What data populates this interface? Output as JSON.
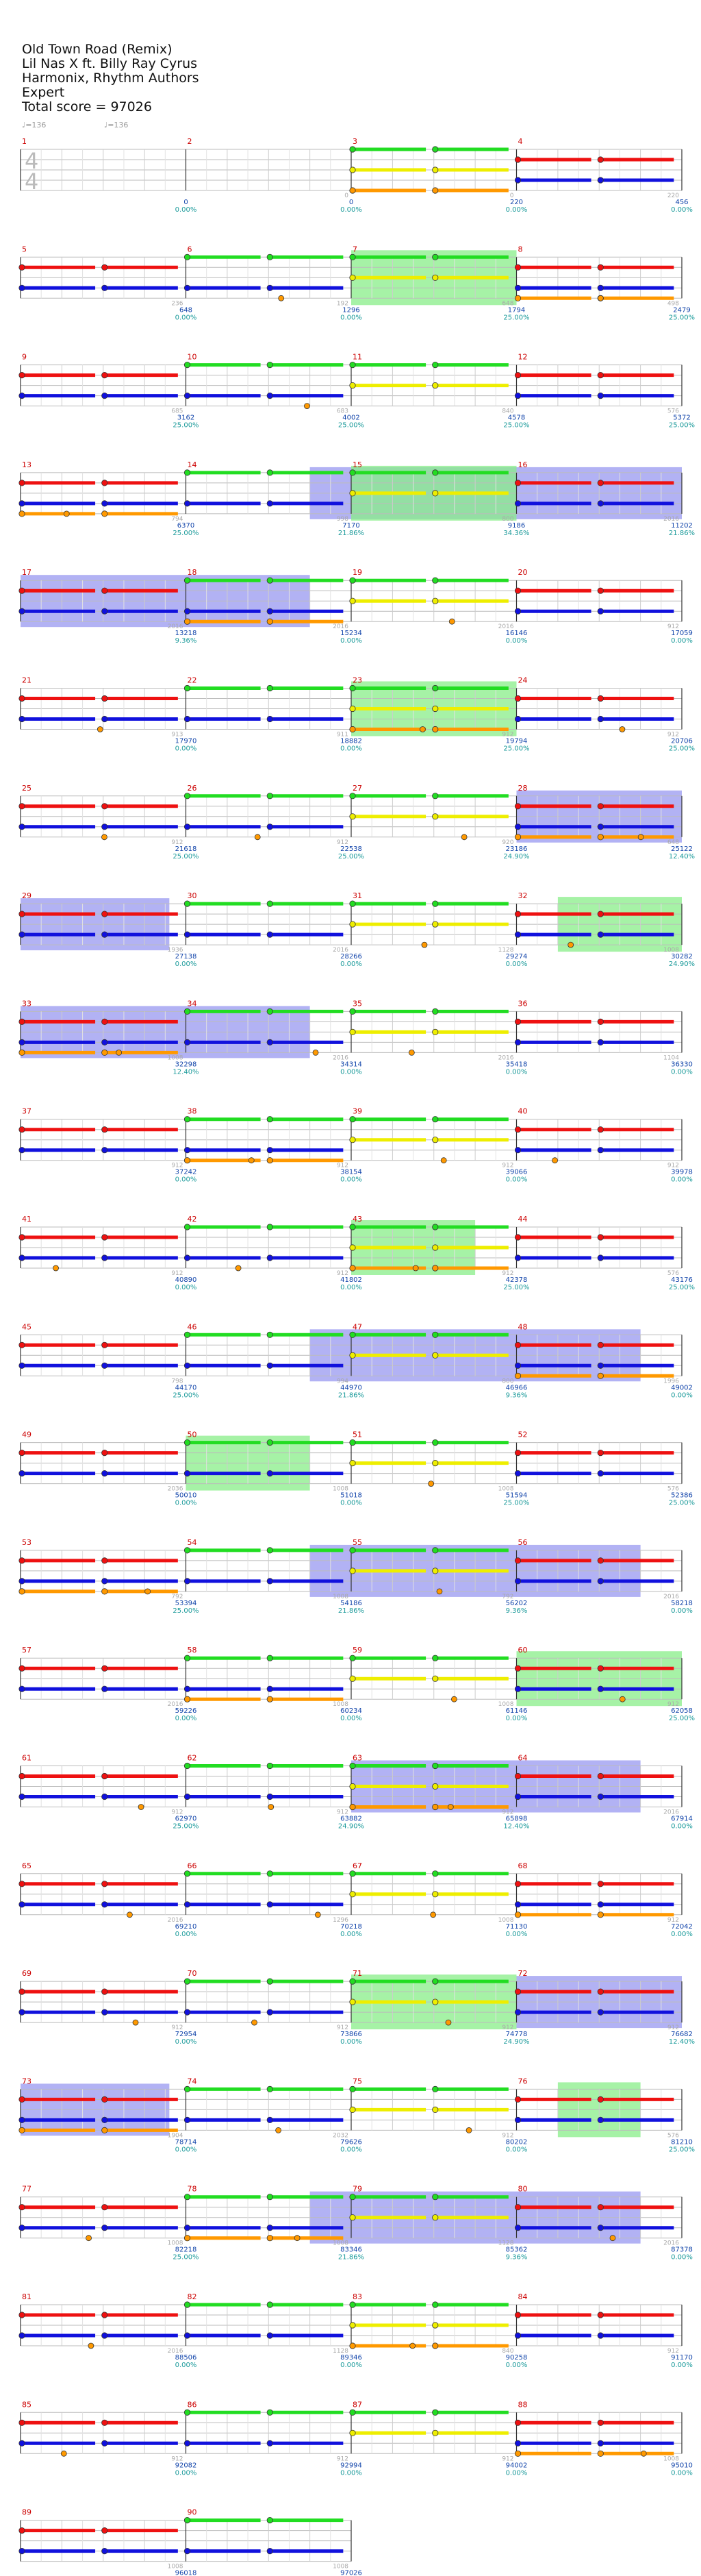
{
  "header": {
    "song": "Old Town Road (Remix)",
    "artist": "Lil Nas X ft. Billy Ray Cyrus",
    "charter": "Harmonix, Rhythm Authors",
    "difficulty": "Expert",
    "total_score": "Total score = 97026"
  },
  "tempo_markers": [
    "♩=136",
    "♩=136"
  ],
  "time_signature": [
    "4",
    "4"
  ],
  "colors": {
    "green": "#22dd22",
    "red": "#ee1111",
    "yellow": "#eeee00",
    "blue": "#1111dd",
    "orange": "#ff9900",
    "star_power": "#88ee88",
    "overdrive": "#8888ee",
    "measure_number": "#cc0000",
    "score": "#1144aa",
    "percent": "#1a9a9a",
    "measure_value": "#aaaaaa"
  },
  "measures": [
    {
      "n": "1",
      "v": "",
      "s": "",
      "p": ""
    },
    {
      "n": "2",
      "v": "0",
      "s": "0",
      "p": "0.00%"
    },
    {
      "n": "3",
      "v": "0",
      "s": "0",
      "p": "0.00%"
    },
    {
      "n": "4",
      "v": "220",
      "s": "220",
      "p": "0.00%"
    },
    {
      "n": "5",
      "v": "236",
      "s": "456",
      "p": "0.00%"
    },
    {
      "n": "6",
      "v": "192",
      "s": "648",
      "p": "0.00%"
    },
    {
      "n": "7",
      "v": "648",
      "s": "1296",
      "p": "0.00%"
    },
    {
      "n": "8",
      "v": "498",
      "s": "1794",
      "p": "25.00%"
    },
    {
      "n": "9",
      "v": "685",
      "s": "2479",
      "p": "25.00%"
    },
    {
      "n": "10",
      "v": "683",
      "s": "3162",
      "p": "25.00%"
    },
    {
      "n": "11",
      "v": "840",
      "s": "4002",
      "p": "25.00%"
    },
    {
      "n": "12",
      "v": "576",
      "s": "4578",
      "p": "25.00%"
    },
    {
      "n": "13",
      "v": "794",
      "s": "5372",
      "p": "25.00%"
    },
    {
      "n": "14",
      "v": "998",
      "s": "6370",
      "p": "25.00%"
    },
    {
      "n": "15",
      "v": "800",
      "s": "7170",
      "p": "21.86%"
    },
    {
      "n": "16",
      "v": "2016",
      "s": "9186",
      "p": "34.36%"
    },
    {
      "n": "17",
      "v": "2016",
      "s": "11202",
      "p": "21.86%"
    },
    {
      "n": "18",
      "v": "2016",
      "s": "13218",
      "p": "9.36%"
    },
    {
      "n": "19",
      "v": "2016",
      "s": "15234",
      "p": "0.00%"
    },
    {
      "n": "20",
      "v": "912",
      "s": "16146",
      "p": "0.00%"
    },
    {
      "n": "21",
      "v": "913",
      "s": "17059",
      "p": "0.00%"
    },
    {
      "n": "22",
      "v": "911",
      "s": "17970",
      "p": "0.00%"
    },
    {
      "n": "23",
      "v": "912",
      "s": "18882",
      "p": "0.00%"
    },
    {
      "n": "24",
      "v": "912",
      "s": "19794",
      "p": "25.00%"
    },
    {
      "n": "25",
      "v": "912",
      "s": "20706",
      "p": "25.00%"
    },
    {
      "n": "26",
      "v": "912",
      "s": "21618",
      "p": "25.00%"
    },
    {
      "n": "27",
      "v": "920",
      "s": "22538",
      "p": "25.00%"
    },
    {
      "n": "28",
      "v": "648",
      "s": "23186",
      "p": "24.90%"
    },
    {
      "n": "29",
      "v": "1936",
      "s": "25122",
      "p": "12.40%"
    },
    {
      "n": "30",
      "v": "2016",
      "s": "27138",
      "p": "0.00%"
    },
    {
      "n": "31",
      "v": "1128",
      "s": "28266",
      "p": "0.00%"
    },
    {
      "n": "32",
      "v": "1008",
      "s": "29274",
      "p": "0.00%"
    },
    {
      "n": "33",
      "v": "1008",
      "s": "30282",
      "p": "24.90%"
    },
    {
      "n": "34",
      "v": "2016",
      "s": "32298",
      "p": "12.40%"
    },
    {
      "n": "35",
      "v": "2016",
      "s": "34314",
      "p": "0.00%"
    },
    {
      "n": "36",
      "v": "1104",
      "s": "35418",
      "p": "0.00%"
    },
    {
      "n": "37",
      "v": "912",
      "s": "36330",
      "p": "0.00%"
    },
    {
      "n": "38",
      "v": "912",
      "s": "37242",
      "p": "0.00%"
    },
    {
      "n": "39",
      "v": "912",
      "s": "38154",
      "p": "0.00%"
    },
    {
      "n": "40",
      "v": "912",
      "s": "39066",
      "p": "0.00%"
    },
    {
      "n": "41",
      "v": "912",
      "s": "39978",
      "p": "0.00%"
    },
    {
      "n": "42",
      "v": "912",
      "s": "40890",
      "p": "0.00%"
    },
    {
      "n": "43",
      "v": "912",
      "s": "41802",
      "p": "0.00%"
    },
    {
      "n": "44",
      "v": "576",
      "s": "42378",
      "p": "25.00%"
    },
    {
      "n": "45",
      "v": "798",
      "s": "43176",
      "p": "25.00%"
    },
    {
      "n": "46",
      "v": "994",
      "s": "44170",
      "p": "25.00%"
    },
    {
      "n": "47",
      "v": "800",
      "s": "44970",
      "p": "21.86%"
    },
    {
      "n": "48",
      "v": "1996",
      "s": "46966",
      "p": "9.36%"
    },
    {
      "n": "49",
      "v": "2036",
      "s": "49002",
      "p": "0.00%"
    },
    {
      "n": "50",
      "v": "1008",
      "s": "50010",
      "p": "0.00%"
    },
    {
      "n": "51",
      "v": "1008",
      "s": "51018",
      "p": "0.00%"
    },
    {
      "n": "52",
      "v": "576",
      "s": "51594",
      "p": "25.00%"
    },
    {
      "n": "53",
      "v": "792",
      "s": "52386",
      "p": "25.00%"
    },
    {
      "n": "54",
      "v": "1008",
      "s": "53394",
      "p": "25.00%"
    },
    {
      "n": "55",
      "v": "792",
      "s": "54186",
      "p": "21.86%"
    },
    {
      "n": "56",
      "v": "2016",
      "s": "56202",
      "p": "9.36%"
    },
    {
      "n": "57",
      "v": "2016",
      "s": "58218",
      "p": "0.00%"
    },
    {
      "n": "58",
      "v": "1008",
      "s": "59226",
      "p": "0.00%"
    },
    {
      "n": "59",
      "v": "1008",
      "s": "60234",
      "p": "0.00%"
    },
    {
      "n": "60",
      "v": "912",
      "s": "61146",
      "p": "0.00%"
    },
    {
      "n": "61",
      "v": "912",
      "s": "62058",
      "p": "25.00%"
    },
    {
      "n": "62",
      "v": "912",
      "s": "62970",
      "p": "25.00%"
    },
    {
      "n": "63",
      "v": "912",
      "s": "63882",
      "p": "24.90%"
    },
    {
      "n": "64",
      "v": "2016",
      "s": "65898",
      "p": "12.40%"
    },
    {
      "n": "65",
      "v": "2016",
      "s": "67914",
      "p": "0.00%"
    },
    {
      "n": "66",
      "v": "1296",
      "s": "69210",
      "p": "0.00%"
    },
    {
      "n": "67",
      "v": "1008",
      "s": "70218",
      "p": "0.00%"
    },
    {
      "n": "68",
      "v": "912",
      "s": "71130",
      "p": "0.00%"
    },
    {
      "n": "69",
      "v": "912",
      "s": "72042",
      "p": "0.00%"
    },
    {
      "n": "70",
      "v": "912",
      "s": "72954",
      "p": "0.00%"
    },
    {
      "n": "71",
      "v": "912",
      "s": "73866",
      "p": "0.00%"
    },
    {
      "n": "72",
      "v": "912",
      "s": "74778",
      "p": "24.90%"
    },
    {
      "n": "73",
      "v": "1904",
      "s": "76682",
      "p": "12.40%"
    },
    {
      "n": "74",
      "v": "2032",
      "s": "78714",
      "p": "0.00%"
    },
    {
      "n": "75",
      "v": "912",
      "s": "79626",
      "p": "0.00%"
    },
    {
      "n": "76",
      "v": "576",
      "s": "80202",
      "p": "0.00%"
    },
    {
      "n": "77",
      "v": "1008",
      "s": "81210",
      "p": "25.00%"
    },
    {
      "n": "78",
      "v": "1008",
      "s": "82218",
      "p": "25.00%"
    },
    {
      "n": "79",
      "v": "1128",
      "s": "83346",
      "p": "21.86%"
    },
    {
      "n": "80",
      "v": "2016",
      "s": "85362",
      "p": "9.36%"
    },
    {
      "n": "81",
      "v": "2016",
      "s": "87378",
      "p": "0.00%"
    },
    {
      "n": "82",
      "v": "1128",
      "s": "88506",
      "p": "0.00%"
    },
    {
      "n": "83",
      "v": "840",
      "s": "89346",
      "p": "0.00%"
    },
    {
      "n": "84",
      "v": "912",
      "s": "90258",
      "p": "0.00%"
    },
    {
      "n": "85",
      "v": "912",
      "s": "91170",
      "p": "0.00%"
    },
    {
      "n": "86",
      "v": "912",
      "s": "92082",
      "p": "0.00%"
    },
    {
      "n": "87",
      "v": "912",
      "s": "92994",
      "p": "0.00%"
    },
    {
      "n": "88",
      "v": "1008",
      "s": "94002",
      "p": "0.00%"
    },
    {
      "n": "89",
      "v": "1008",
      "s": "95010",
      "p": "0.00%"
    },
    {
      "n": "90",
      "v": "1008",
      "s": "96018",
      "p": "0.00%"
    },
    {
      "n": "",
      "v": "1008",
      "s": "97026",
      "p": "0.00%"
    }
  ],
  "sections": [
    {
      "type": "star_power",
      "from": 7,
      "to": 8
    },
    {
      "type": "overdrive",
      "from": 14.75,
      "to": 16.0
    },
    {
      "type": "star_power",
      "from": 15,
      "to": 16
    },
    {
      "type": "overdrive",
      "from": 16,
      "to": 18.75
    },
    {
      "type": "star_power",
      "from": 23,
      "to": 24
    },
    {
      "type": "overdrive",
      "from": 28,
      "to": 29.9
    },
    {
      "type": "star_power",
      "from": 32.25,
      "to": 33
    },
    {
      "type": "overdrive",
      "from": 33,
      "to": 34.75
    },
    {
      "type": "star_power",
      "from": 43,
      "to": 43.75
    },
    {
      "type": "overdrive",
      "from": 46.75,
      "to": 48.75
    },
    {
      "type": "star_power",
      "from": 50,
      "to": 50.75
    },
    {
      "type": "overdrive",
      "from": 54.75,
      "to": 56.75
    },
    {
      "type": "star_power",
      "from": 60,
      "to": 61
    },
    {
      "type": "overdrive",
      "from": 63,
      "to": 64.75
    },
    {
      "type": "star_power",
      "from": 71,
      "to": 72
    },
    {
      "type": "overdrive",
      "from": 72,
      "to": 73.9
    },
    {
      "type": "star_power",
      "from": 76.25,
      "to": 76.75
    },
    {
      "type": "overdrive",
      "from": 78.75,
      "to": 80.75
    }
  ]
}
